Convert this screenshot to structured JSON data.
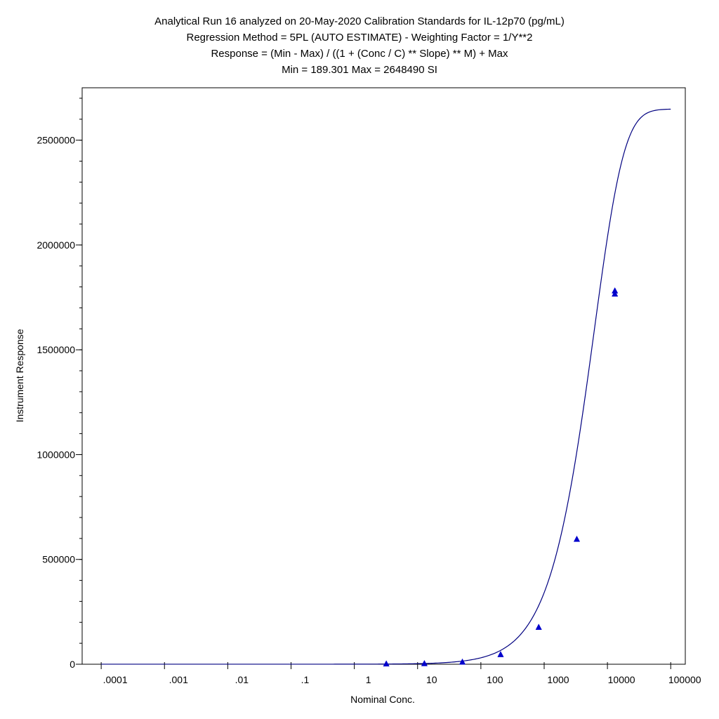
{
  "chart_data": {
    "type": "scatter",
    "title_lines": [
      "Analytical Run 16 analyzed on 20-May-2020 Calibration Standards for IL-12p70 (pg/mL)",
      "Regression Method = 5PL (AUTO ESTIMATE) - Weighting Factor = 1/Y**2",
      "Response = (Min - Max) / ((1 + (Conc / C) ** Slope) ** M) + Max",
      "Min = 189.301 Max = 2648490 SI"
    ],
    "xlabel": "Nominal Conc.",
    "ylabel": "Instrument Response",
    "x_scale": "log",
    "xlim": [
      5e-05,
      170000
    ],
    "ylim": [
      0,
      2750000
    ],
    "x_ticks": [
      {
        "value": 0.0001,
        "label": ".0001"
      },
      {
        "value": 0.001,
        "label": ".001"
      },
      {
        "value": 0.01,
        "label": ".01"
      },
      {
        "value": 0.1,
        "label": ".1"
      },
      {
        "value": 1,
        "label": "1"
      },
      {
        "value": 10,
        "label": "10"
      },
      {
        "value": 100,
        "label": "100"
      },
      {
        "value": 1000,
        "label": "1000"
      },
      {
        "value": 10000,
        "label": "10000"
      },
      {
        "value": 100000,
        "label": "100000"
      }
    ],
    "y_ticks": [
      {
        "value": 0,
        "label": "0"
      },
      {
        "value": 500000,
        "label": "500000"
      },
      {
        "value": 1000000,
        "label": "1000000"
      },
      {
        "value": 1500000,
        "label": "1500000"
      },
      {
        "value": 2000000,
        "label": "2000000"
      },
      {
        "value": 2500000,
        "label": "2500000"
      }
    ],
    "y_minor_step": 100000,
    "grid": false,
    "series": [
      {
        "marker": "triangle",
        "color": "#0000cc",
        "x": [
          3.2,
          12.8,
          51,
          205,
          820,
          3280,
          13100,
          13100
        ],
        "y": [
          400,
          1800,
          9000,
          45000,
          175000,
          595000,
          1765000,
          1780000
        ]
      }
    ],
    "fit_curve": {
      "model": "5PL",
      "color": "#000080",
      "min": 189.301,
      "max": 2648490,
      "c": 30000,
      "slope": 1.08,
      "m": 5.5,
      "x_range": [
        0.0001,
        100000
      ]
    }
  }
}
